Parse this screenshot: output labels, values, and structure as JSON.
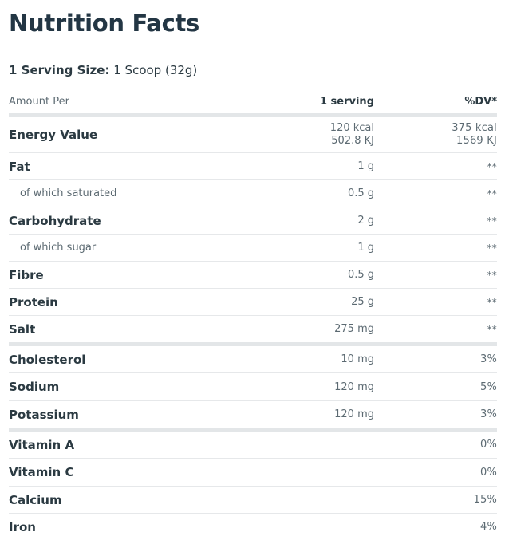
{
  "title": "Nutrition Facts",
  "serving": {
    "label": "1 Serving Size:",
    "value": "1 Scoop (32g)"
  },
  "headers": {
    "amount_per": "Amount Per",
    "serving": "1 serving",
    "dv": "%DV*"
  },
  "rows": [
    {
      "name": "Energy Value",
      "serving_line1": "120 kcal",
      "serving_line2": "502.8 KJ",
      "dv_line1": "375 kcal",
      "dv_line2": "1569 KJ"
    },
    {
      "name": "Fat",
      "serving": "1 g",
      "dv": "**"
    },
    {
      "name": "of which saturated",
      "serving": "0.5 g",
      "dv": "**"
    },
    {
      "name": "Carbohydrate",
      "serving": "2 g",
      "dv": "**"
    },
    {
      "name": "of which sugar",
      "serving": "1 g",
      "dv": "**"
    },
    {
      "name": "Fibre",
      "serving": "0.5 g",
      "dv": "**"
    },
    {
      "name": "Protein",
      "serving": "25 g",
      "dv": "**"
    },
    {
      "name": "Salt",
      "serving": "275 mg",
      "dv": "**"
    },
    {
      "name": "Cholesterol",
      "serving": "10 mg",
      "dv": "3%"
    },
    {
      "name": "Sodium",
      "serving": "120 mg",
      "dv": "5%"
    },
    {
      "name": "Potassium",
      "serving": "120 mg",
      "dv": "3%"
    },
    {
      "name": "Vitamin A",
      "serving": "",
      "dv": "0%"
    },
    {
      "name": "Vitamin C",
      "serving": "",
      "dv": "0%"
    },
    {
      "name": "Calcium",
      "serving": "",
      "dv": "15%"
    },
    {
      "name": "Iron",
      "serving": "",
      "dv": "4%"
    }
  ]
}
